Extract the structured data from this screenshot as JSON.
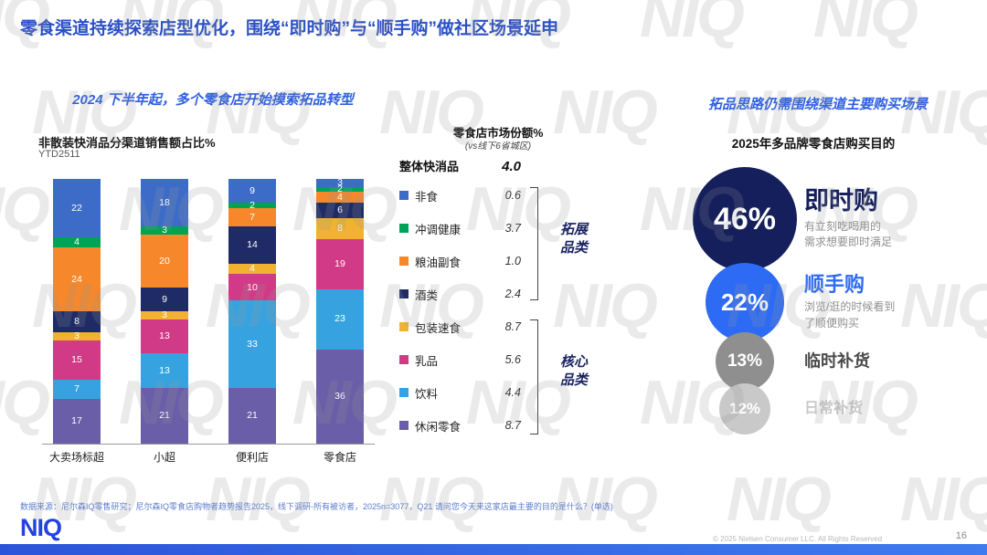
{
  "title": "零食渠道持续探索店型优化，围绕“即时购”与“顺手购”做社区场景延申",
  "watermark": "NIQ",
  "left": {
    "header": "2024 下半年起，多个零食店开始摸索拓品转型",
    "chart_title": "非散装快消品分渠道销售额占比%",
    "chart_subtitle": "YTD2511"
  },
  "chart_data": {
    "type": "bar",
    "stacked": true,
    "title": "非散装快消品分渠道销售额占比%",
    "subtitle": "YTD2511",
    "unit": "%",
    "ylim": [
      0,
      100
    ],
    "categories": [
      "大卖场标超",
      "小超",
      "便利店",
      "零食店"
    ],
    "series": [
      {
        "name": "非食",
        "color": "#3D6CC8",
        "values": [
          22,
          18,
          9,
          3
        ]
      },
      {
        "name": "冲调健康",
        "color": "#00A355",
        "values": [
          4,
          3,
          2,
          2
        ]
      },
      {
        "name": "粮油副食",
        "color": "#F6882B",
        "values": [
          24,
          20,
          7,
          4
        ]
      },
      {
        "name": "酒类",
        "color": "#1F2B66",
        "values": [
          8,
          9,
          14,
          6
        ]
      },
      {
        "name": "包装速食",
        "color": "#F2B231",
        "values": [
          3,
          3,
          4,
          8
        ]
      },
      {
        "name": "乳品",
        "color": "#D13A86",
        "values": [
          15,
          13,
          10,
          19
        ]
      },
      {
        "name": "饮料",
        "color": "#36A3E0",
        "values": [
          7,
          13,
          33,
          23
        ]
      },
      {
        "name": "休闲零食",
        "color": "#6A5EA8",
        "values": [
          17,
          21,
          21,
          36
        ]
      }
    ]
  },
  "market_share": {
    "header": "零食店市场份额%",
    "subheader": "(vs线下6省城区)",
    "total_label": "整体快消品",
    "total_value": "4.0",
    "values": [
      "0.6",
      "3.7",
      "1.0",
      "2.4",
      "8.7",
      "5.6",
      "4.4",
      "8.7"
    ],
    "groups": [
      {
        "label": "拓展\n品类"
      },
      {
        "label": "核心\n品类"
      }
    ]
  },
  "right": {
    "header": "拓品思路仍需围绕渠道主要购买场景",
    "subtitle": "2025年多品牌零食店购买目的",
    "bubbles": [
      {
        "pct": "46%",
        "label": "即时购",
        "desc": "有立刻吃喝用的\n需求想要即时满足",
        "color": "#141F5C",
        "label_color": "#141F5C",
        "desc_color": "#8f8f8f",
        "size": 114,
        "label_size": 27
      },
      {
        "pct": "22%",
        "label": "顺手购",
        "desc": "浏览/逛的时候看到\n了顺便购买",
        "color": "#2D6BF5",
        "label_color": "#2D6BF5",
        "desc_color": "#8f8f8f",
        "size": 86,
        "label_size": 22
      },
      {
        "pct": "13%",
        "label": "临时补货",
        "desc": "",
        "color": "#8F8F8F",
        "label_color": "#4a4a4a",
        "desc_color": "#8f8f8f",
        "size": 64,
        "label_size": 18
      },
      {
        "pct": "12%",
        "label": "日常补货",
        "desc": "",
        "color": "#C9C9C9",
        "label_color": "#c9c9c9",
        "desc_color": "#8f8f8f",
        "size": 56,
        "label_size": 16
      }
    ]
  },
  "footer": {
    "source": "数据来源：尼尔森IQ零售研究；尼尔森IQ零食店购物者趋势报告2025，线下调研-所有被访者，2025n=3077，Q21 请问您今天来这家店最主要的目的是什么？(单选)",
    "logo": "NIQ",
    "copyright": "© 2025 Nielsen Consumer LLC. All Rights Reserved",
    "page": "16"
  },
  "colors": {
    "accent_blue": "#2B50C5",
    "bright_blue": "#2D6BF5",
    "navy": "#141F5C",
    "footer_bar": "#2E5EE0"
  }
}
